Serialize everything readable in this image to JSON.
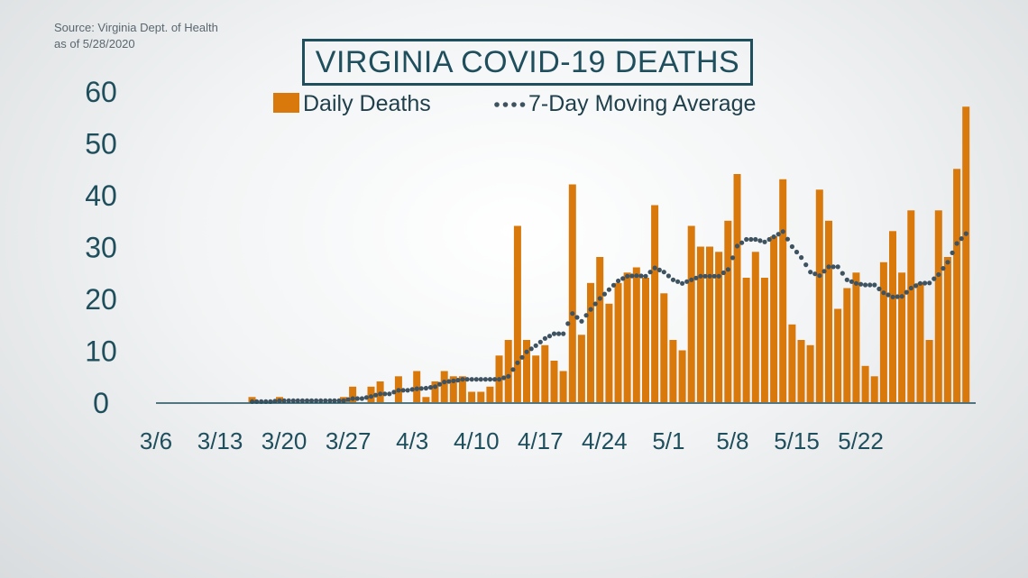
{
  "source_line1": "Source: Virginia Dept. of Health",
  "source_line2": "as of 5/28/2020",
  "colors": {
    "bar": "#d9790b",
    "avg": "#3e5260",
    "text": "#1f4e5c",
    "baseline": "#1f4e5c"
  },
  "chart_data": {
    "type": "bar",
    "title": "VIRGINIA COVID-19 DEATHS",
    "ylim": [
      0,
      60
    ],
    "y_ticks": [
      0,
      10,
      20,
      30,
      40,
      50,
      60
    ],
    "x_ticks": [
      "3/6",
      "3/13",
      "3/20",
      "3/27",
      "4/3",
      "4/10",
      "4/17",
      "4/24",
      "5/1",
      "5/8",
      "5/15",
      "5/22"
    ],
    "x_start": "3/6",
    "grid": false,
    "legend_position": "top",
    "series": [
      {
        "name": "Daily Deaths",
        "type": "bar",
        "values": [
          0,
          0,
          0,
          0,
          0,
          0,
          0,
          0,
          0,
          0,
          1,
          0,
          0,
          1,
          0,
          0,
          0,
          0,
          0,
          0,
          1,
          3,
          0,
          3,
          4,
          0,
          5,
          0,
          6,
          1,
          4,
          6,
          5,
          5,
          2,
          2,
          3,
          9,
          12,
          34,
          12,
          9,
          11,
          8,
          6,
          42,
          13,
          23,
          28,
          19,
          23,
          25,
          26,
          24,
          38,
          21,
          12,
          10,
          34,
          30,
          30,
          29,
          35,
          44,
          24,
          29,
          24,
          32,
          43,
          15,
          12,
          11,
          41,
          35,
          18,
          22,
          25,
          7,
          5,
          27,
          33,
          25,
          37,
          23,
          12,
          37,
          28,
          45,
          57
        ]
      },
      {
        "name": "7-Day Moving Average",
        "type": "dotted-line",
        "values": [
          null,
          null,
          null,
          null,
          null,
          null,
          null,
          null,
          null,
          null,
          0.1,
          0.1,
          0.1,
          0.3,
          0.3,
          0.3,
          0.3,
          0.3,
          0.3,
          0.3,
          0.3,
          0.7,
          0.7,
          1.1,
          1.6,
          1.6,
          2.3,
          2.3,
          2.6,
          2.7,
          3.0,
          3.9,
          4.1,
          4.4,
          4.4,
          4.4,
          4.4,
          4.4,
          5.0,
          7.6,
          9.7,
          10.9,
          12.3,
          13.2,
          13.2,
          17.1,
          15.6,
          17.9,
          20.0,
          21.7,
          23.4,
          24.3,
          24.4,
          24.3,
          25.9,
          25.1,
          23.6,
          22.9,
          23.6,
          24.3,
          24.3,
          24.3,
          25.6,
          30.1,
          31.4,
          31.4,
          30.9,
          31.9,
          32.9,
          30.0,
          27.9,
          25.1,
          24.4,
          26.1,
          26.1,
          23.6,
          22.9,
          22.6,
          22.6,
          21.1,
          20.3,
          20.4,
          22.0,
          22.9,
          23.0,
          24.6,
          27.0,
          30.6,
          32.5
        ]
      }
    ]
  }
}
